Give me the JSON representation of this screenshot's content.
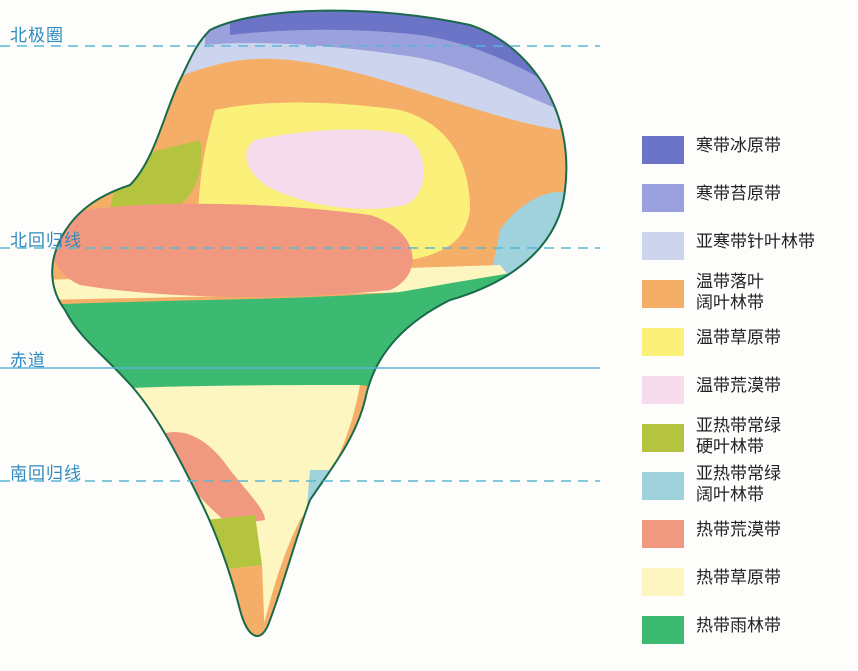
{
  "lines": [
    {
      "label": "北极圈",
      "style": "dashed"
    },
    {
      "label": "北回归线",
      "style": "dashed"
    },
    {
      "label": "赤道",
      "style": "solid"
    },
    {
      "label": "南回归线",
      "style": "dashed"
    }
  ],
  "legend": [
    {
      "label": "寒带冰原带",
      "color": "#6b74c6"
    },
    {
      "label": "寒带苔原带",
      "color": "#9aa1dc"
    },
    {
      "label": "亚寒带针叶林带",
      "color": "#cdd4ee"
    },
    {
      "label": "温带落叶\n阔叶林带",
      "color": "#f4ae68"
    },
    {
      "label": "温带草原带",
      "color": "#fbf07a"
    },
    {
      "label": "温带荒漠带",
      "color": "#f6dcec"
    },
    {
      "label": "亚热带常绿\n硬叶林带",
      "color": "#b5c43e"
    },
    {
      "label": "亚热带常绿\n阔叶林带",
      "color": "#9fd2dc"
    },
    {
      "label": "热带荒漠带",
      "color": "#f09880"
    },
    {
      "label": "热带草原带",
      "color": "#fdf6c0"
    },
    {
      "label": "热带雨林带",
      "color": "#3dba72"
    }
  ]
}
